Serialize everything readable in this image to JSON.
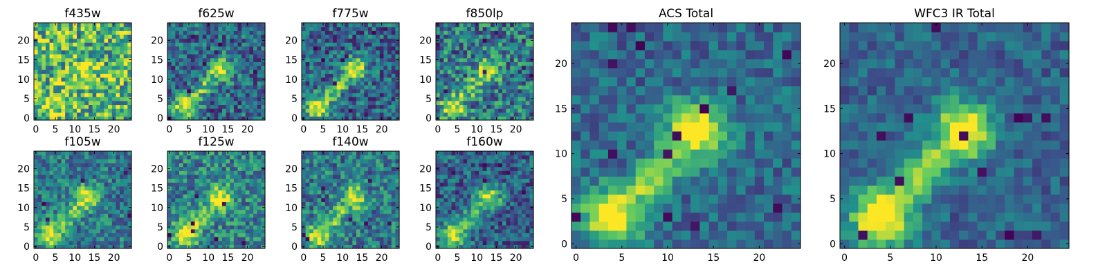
{
  "figure": {
    "colormap": "viridis",
    "colormap_colors": [
      "#440154",
      "#3b528b",
      "#21918c",
      "#5ec962",
      "#fde725"
    ]
  },
  "chart_data": [
    {
      "type": "heatmap",
      "title": "f435w",
      "grid_size": 25,
      "xlim": [
        0,
        24
      ],
      "ylim": [
        0,
        24
      ],
      "xticks": [
        0,
        5,
        10,
        15,
        20
      ],
      "yticks": [
        0,
        5,
        10,
        15,
        20
      ],
      "signal": 0.35,
      "noise": 0.75,
      "base": 0.72,
      "seed": 11,
      "dark_spots": 0
    },
    {
      "type": "heatmap",
      "title": "f625w",
      "grid_size": 25,
      "xlim": [
        0,
        24
      ],
      "ylim": [
        0,
        24
      ],
      "xticks": [
        0,
        5,
        10,
        15,
        20
      ],
      "yticks": [
        0,
        5,
        10,
        15,
        20
      ],
      "signal": 0.65,
      "noise": 0.5,
      "base": 0.38,
      "seed": 23,
      "dark_spots": 8
    },
    {
      "type": "heatmap",
      "title": "f775w",
      "grid_size": 25,
      "xlim": [
        0,
        24
      ],
      "ylim": [
        0,
        24
      ],
      "xticks": [
        0,
        5,
        10,
        15,
        20
      ],
      "yticks": [
        0,
        5,
        10,
        15,
        20
      ],
      "signal": 0.7,
      "noise": 0.5,
      "base": 0.36,
      "seed": 37,
      "dark_spots": 10
    },
    {
      "type": "heatmap",
      "title": "f850lp",
      "grid_size": 25,
      "xlim": [
        0,
        24
      ],
      "ylim": [
        0,
        24
      ],
      "xticks": [
        0,
        5,
        10,
        15,
        20
      ],
      "yticks": [
        0,
        5,
        10,
        15,
        20
      ],
      "signal": 0.55,
      "noise": 0.6,
      "base": 0.45,
      "seed": 41,
      "dark_spots": 8
    },
    {
      "type": "heatmap",
      "title": "f105w",
      "grid_size": 25,
      "xlim": [
        0,
        24
      ],
      "ylim": [
        0,
        24
      ],
      "xticks": [
        0,
        5,
        10,
        15,
        20
      ],
      "yticks": [
        0,
        5,
        10,
        15,
        20
      ],
      "signal": 0.6,
      "noise": 0.45,
      "base": 0.45,
      "seed": 53,
      "dark_spots": 5
    },
    {
      "type": "heatmap",
      "title": "f125w",
      "grid_size": 25,
      "xlim": [
        0,
        24
      ],
      "ylim": [
        0,
        24
      ],
      "xticks": [
        0,
        5,
        10,
        15,
        20
      ],
      "yticks": [
        0,
        5,
        10,
        15,
        20
      ],
      "signal": 0.6,
      "noise": 0.5,
      "base": 0.5,
      "seed": 67,
      "dark_spots": 7
    },
    {
      "type": "heatmap",
      "title": "f140w",
      "grid_size": 25,
      "xlim": [
        0,
        24
      ],
      "ylim": [
        0,
        24
      ],
      "xticks": [
        0,
        5,
        10,
        15,
        20
      ],
      "yticks": [
        0,
        5,
        10,
        15,
        20
      ],
      "signal": 0.6,
      "noise": 0.5,
      "base": 0.45,
      "seed": 79,
      "dark_spots": 8
    },
    {
      "type": "heatmap",
      "title": "f160w",
      "grid_size": 25,
      "xlim": [
        0,
        24
      ],
      "ylim": [
        0,
        24
      ],
      "xticks": [
        0,
        5,
        10,
        15,
        20
      ],
      "yticks": [
        0,
        5,
        10,
        15,
        20
      ],
      "signal": 0.65,
      "noise": 0.45,
      "base": 0.35,
      "seed": 83,
      "dark_spots": 9
    },
    {
      "type": "heatmap",
      "title": "ACS Total",
      "grid_size": 25,
      "xlim": [
        0,
        24
      ],
      "ylim": [
        0,
        24
      ],
      "xticks": [
        0,
        5,
        10,
        15,
        20
      ],
      "yticks": [
        0,
        5,
        10,
        15,
        20
      ],
      "signal": 0.8,
      "noise": 0.32,
      "base": 0.38,
      "seed": 97,
      "dark_spots": 14
    },
    {
      "type": "heatmap",
      "title": "WFC3 IR Total",
      "grid_size": 25,
      "xlim": [
        0,
        24
      ],
      "ylim": [
        0,
        24
      ],
      "xticks": [
        0,
        5,
        10,
        15,
        20
      ],
      "yticks": [
        0,
        5,
        10,
        15,
        20
      ],
      "signal": 0.85,
      "noise": 0.28,
      "base": 0.36,
      "seed": 101,
      "dark_spots": 12
    }
  ]
}
